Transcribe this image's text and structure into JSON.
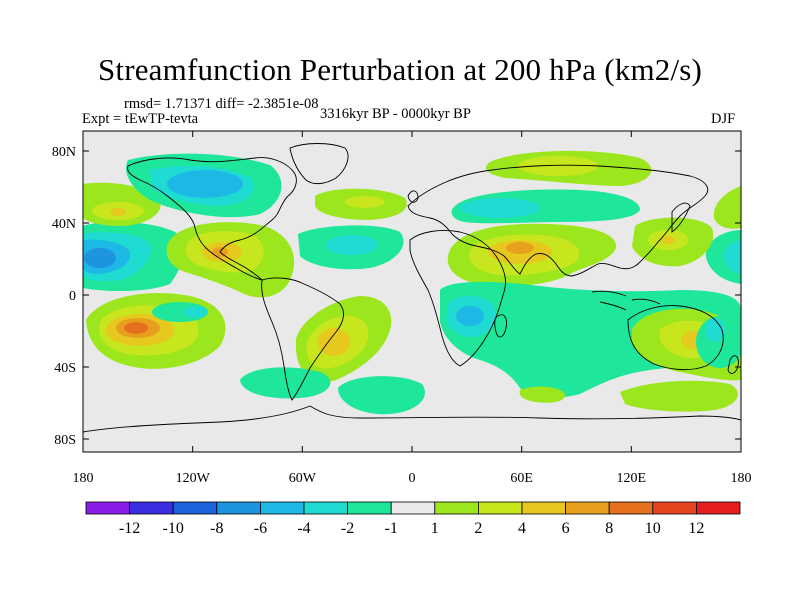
{
  "title": "Streamfunction Perturbation at 200 hPa (km2/s)",
  "stats": "rmsd= 1.71371 diff= -2.3851e-08",
  "experiment": "Expt = tEwTP-tevta",
  "period": "3316kyr BP - 0000kyr BP",
  "season": "DJF",
  "lat_ticks": [
    "80N",
    "40N",
    "0",
    "40S",
    "80S"
  ],
  "lon_ticks": [
    "180",
    "120W",
    "60W",
    "0",
    "60E",
    "120E",
    "180"
  ],
  "colorbar": {
    "labels": [
      "-12",
      "-10",
      "-8",
      "-6",
      "-4",
      "-2",
      "-1",
      "1",
      "2",
      "4",
      "6",
      "8",
      "10",
      "12"
    ],
    "colors": [
      "#8a1ee6",
      "#3a2ee0",
      "#1e62dc",
      "#1e94e0",
      "#1eb8e6",
      "#1edcd2",
      "#1ee69a",
      "#e9e9e9",
      "#9ce61e",
      "#c8e61e",
      "#e6c81e",
      "#e6a01e",
      "#e6701e",
      "#e6461e",
      "#e61e1e"
    ]
  },
  "fill_colors": {
    "background": "#e9e9e9",
    "pos1": "#9ce61e",
    "pos2": "#c8e61e",
    "pos3": "#e6c81e",
    "pos4": "#e6a01e",
    "pos5": "#e6701e",
    "neg1": "#1ee69a",
    "neg2": "#1edcd2",
    "neg3": "#1eb8e6",
    "neg4": "#1e94e0"
  }
}
